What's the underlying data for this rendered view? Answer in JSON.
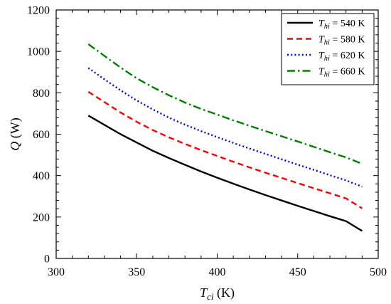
{
  "chart_data": {
    "type": "line",
    "xlabel": {
      "symbol": "T",
      "subscript": "ci",
      "unit": " (K)"
    },
    "ylabel": {
      "symbol": "Q",
      "unit": " (W)"
    },
    "xlim": [
      300,
      500
    ],
    "ylim": [
      0,
      1200
    ],
    "xticks": [
      300,
      350,
      400,
      450,
      500
    ],
    "yticks": [
      0,
      200,
      400,
      600,
      800,
      1000,
      1200
    ],
    "x": [
      320,
      330,
      340,
      350,
      360,
      370,
      380,
      390,
      400,
      410,
      420,
      430,
      440,
      450,
      460,
      470,
      480,
      490
    ],
    "series": [
      {
        "name": "T_hi = 540 K",
        "legend_symbol": "T",
        "legend_subscript": "hi",
        "legend_value": " = 540 K",
        "color": "#000000",
        "dash": "solid",
        "values": [
          690,
          645,
          600,
          560,
          520,
          485,
          452,
          420,
          390,
          361,
          333,
          306,
          280,
          254,
          229,
          204,
          180,
          133
        ]
      },
      {
        "name": "T_hi = 580 K",
        "legend_symbol": "T",
        "legend_subscript": "hi",
        "legend_value": " = 580 K",
        "color": "#ff0000",
        "dash": "dashed",
        "values": [
          805,
          755,
          705,
          660,
          620,
          585,
          553,
          523,
          495,
          467,
          440,
          414,
          389,
          364,
          339,
          315,
          290,
          242
        ]
      },
      {
        "name": "T_hi = 620 K",
        "legend_symbol": "T",
        "legend_subscript": "hi",
        "legend_value": " = 620 K",
        "color": "#0000ff",
        "dash": "dotted",
        "values": [
          920,
          865,
          812,
          763,
          720,
          680,
          646,
          615,
          586,
          558,
          531,
          505,
          479,
          453,
          428,
          402,
          377,
          347
        ]
      },
      {
        "name": "T_hi = 660 K",
        "legend_symbol": "T",
        "legend_subscript": "hi",
        "legend_value": " = 660 K",
        "color": "#008000",
        "dash": "dashdot",
        "values": [
          1035,
          978,
          922,
          870,
          827,
          788,
          753,
          722,
          695,
          667,
          641,
          615,
          590,
          565,
          539,
          513,
          488,
          457
        ]
      }
    ],
    "legend_position": "top-right",
    "grid": false
  }
}
